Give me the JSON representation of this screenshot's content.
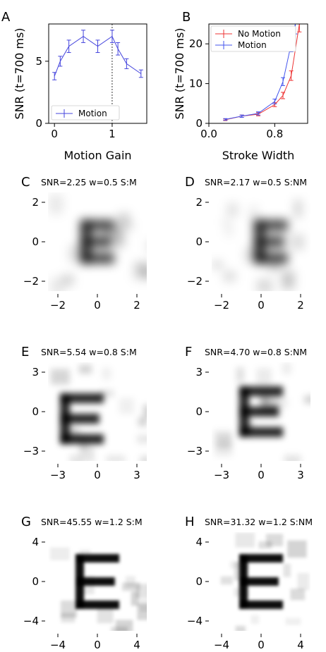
{
  "chart_data": [
    {
      "panel": "A",
      "type": "line",
      "xlabel": "Motion Gain",
      "ylabel": "SNR (t=700 ms)",
      "xlim": [
        -0.1,
        1.6
      ],
      "ylim": [
        0,
        8
      ],
      "xticks": [
        "0",
        "1"
      ],
      "yticks": [
        "0",
        "5"
      ],
      "vline_x": 1,
      "legend": "lower-left",
      "series": [
        {
          "name": "Motion",
          "color": "#4444dd",
          "x": [
            0,
            0.1,
            0.25,
            0.5,
            0.75,
            1.0,
            1.1,
            1.25,
            1.5
          ],
          "y": [
            3.8,
            5.0,
            6.2,
            7.0,
            6.2,
            7.0,
            6.0,
            4.8,
            4.0
          ],
          "err": [
            0.3,
            0.4,
            0.5,
            0.5,
            0.5,
            0.5,
            0.5,
            0.4,
            0.3
          ]
        }
      ]
    },
    {
      "panel": "B",
      "type": "line",
      "xlabel": "Stroke Width",
      "ylabel": "SNR (t=700 ms)",
      "xlim": [
        0.0,
        1.2
      ],
      "ylim": [
        0,
        25
      ],
      "xticks": [
        "0.0",
        "0.8"
      ],
      "yticks": [
        "0",
        "10",
        "20"
      ],
      "legend": "top-left",
      "series": [
        {
          "name": "No Motion",
          "color": "#ee3333",
          "x": [
            0.2,
            0.4,
            0.6,
            0.8,
            0.9,
            1.0,
            1.1
          ],
          "y": [
            0.9,
            1.8,
            2.3,
            4.7,
            7.0,
            12.0,
            25.0
          ],
          "err": [
            0.2,
            0.3,
            0.4,
            0.5,
            0.8,
            1.2,
            2.0
          ]
        },
        {
          "name": "Motion",
          "color": "#4455ee",
          "x": [
            0.2,
            0.4,
            0.6,
            0.8,
            0.9,
            1.0,
            1.05
          ],
          "y": [
            1.0,
            1.8,
            2.5,
            5.5,
            10.5,
            20.0,
            25.0
          ],
          "err": [
            0.2,
            0.3,
            0.4,
            0.6,
            1.0,
            2.0,
            2.5
          ]
        }
      ]
    },
    {
      "panel": "C",
      "type": "heatmap",
      "title": "SNR=2.25 w=0.5 S:M",
      "xticks": [
        "−2",
        "0",
        "2"
      ],
      "yticks": [
        "2",
        "0",
        "−2"
      ],
      "content": "E"
    },
    {
      "panel": "D",
      "type": "heatmap",
      "title": "SNR=2.17 w=0.5 S:NM",
      "xticks": [
        "−2",
        "0",
        "2"
      ],
      "yticks": [
        "2",
        "0",
        "−2"
      ],
      "content": "E"
    },
    {
      "panel": "E",
      "type": "heatmap",
      "title": "SNR=5.54 w=0.8 S:M",
      "xticks": [
        "−3",
        "0",
        "3"
      ],
      "yticks": [
        "3",
        "0",
        "−3"
      ],
      "content": "E"
    },
    {
      "panel": "F",
      "type": "heatmap",
      "title": "SNR=4.70 w=0.8 S:NM",
      "xticks": [
        "−3",
        "0",
        "3"
      ],
      "yticks": [
        "3",
        "0",
        "−3"
      ],
      "content": "E"
    },
    {
      "panel": "G",
      "type": "heatmap",
      "title": "SNR=45.55 w=1.2 S:M",
      "xticks": [
        "−4",
        "0",
        "4"
      ],
      "yticks": [
        "4",
        "0",
        "−4"
      ],
      "content": "E"
    },
    {
      "panel": "H",
      "type": "heatmap",
      "title": "SNR=31.32 w=1.2 S:NM",
      "xticks": [
        "−4",
        "0",
        "4"
      ],
      "yticks": [
        "4",
        "0",
        "−4"
      ],
      "content": "E"
    }
  ]
}
